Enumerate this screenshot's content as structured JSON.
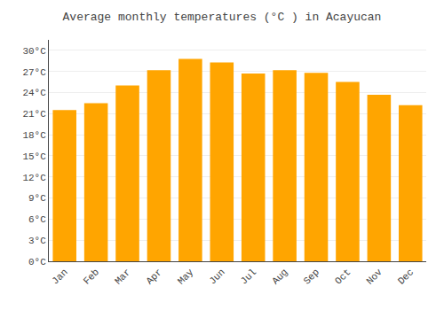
{
  "chart_data": {
    "type": "bar",
    "title": "Average monthly temperatures (°C ) in Acayucan",
    "categories": [
      "Jan",
      "Feb",
      "Mar",
      "Apr",
      "May",
      "Jun",
      "Jul",
      "Aug",
      "Sep",
      "Oct",
      "Nov",
      "Dec"
    ],
    "values": [
      21.5,
      22.5,
      25.0,
      27.2,
      28.8,
      28.3,
      26.7,
      27.2,
      26.8,
      25.5,
      23.7,
      22.2
    ],
    "color": "#FFA500",
    "ylim": [
      0,
      31.5
    ],
    "yticks": [
      {
        "value": 0,
        "label": "0°C"
      },
      {
        "value": 3,
        "label": "3°C"
      },
      {
        "value": 6,
        "label": "6°C"
      },
      {
        "value": 9,
        "label": "9°C"
      },
      {
        "value": 12,
        "label": "12°C"
      },
      {
        "value": 15,
        "label": "15°C"
      },
      {
        "value": 18,
        "label": "18°C"
      },
      {
        "value": 21,
        "label": "21°C"
      },
      {
        "value": 24,
        "label": "24°C"
      },
      {
        "value": 27,
        "label": "27°C"
      },
      {
        "value": 30,
        "label": "30°C"
      }
    ],
    "grid": true
  }
}
